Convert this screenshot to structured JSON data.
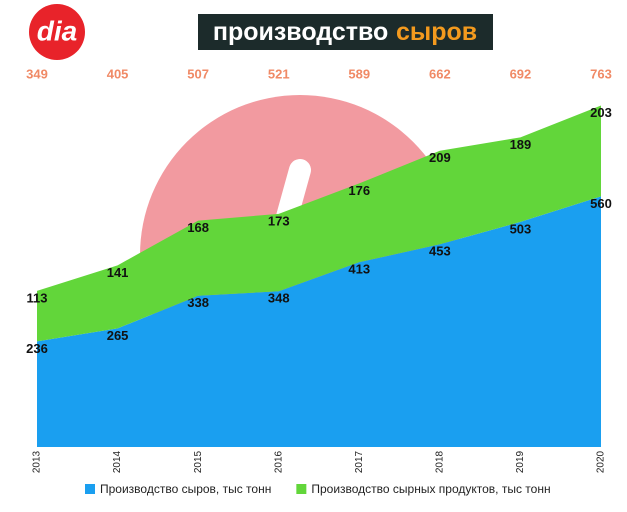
{
  "logo": "dia",
  "chart_data": {
    "type": "stacked-area",
    "title": "производство",
    "title_highlight": "сыров",
    "categories": [
      "2013",
      "2014",
      "2015",
      "2016",
      "2017",
      "2018",
      "2019",
      "2020"
    ],
    "series": [
      {
        "name": "Производство сыров, тыс тонн",
        "color": "#1a9ff0",
        "values": [
          236,
          265,
          338,
          348,
          413,
          453,
          503,
          560
        ]
      },
      {
        "name": "Производство сырных продуктов, тыс тонн",
        "color": "#62d63a",
        "values": [
          113,
          141,
          168,
          173,
          176,
          209,
          189,
          203
        ]
      }
    ],
    "totals": [
      349,
      405,
      507,
      521,
      589,
      662,
      692,
      763
    ],
    "ylim": [
      0,
      800
    ]
  }
}
